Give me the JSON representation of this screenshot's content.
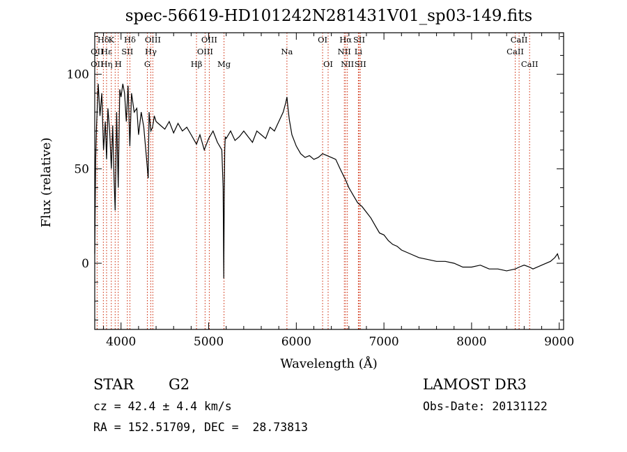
{
  "chart_data": {
    "type": "line",
    "title": "spec-56619-HD101242N281431V01_sp03-149.fits",
    "xlabel": "Wavelength (Å)",
    "ylabel": "Flux (relative)",
    "xlim": [
      3700,
      9050
    ],
    "ylim": [
      -35,
      122
    ],
    "xticks": [
      4000,
      5000,
      6000,
      7000,
      8000,
      9000
    ],
    "yticks": [
      0,
      50,
      100
    ],
    "series": [
      {
        "name": "flux",
        "x": [
          3700,
          3710,
          3720,
          3740,
          3760,
          3780,
          3800,
          3820,
          3835,
          3850,
          3870,
          3889,
          3905,
          3920,
          3933,
          3950,
          3968,
          3985,
          4000,
          4020,
          4040,
          4060,
          4080,
          4101,
          4120,
          4150,
          4180,
          4200,
          4230,
          4260,
          4290,
          4310,
          4320,
          4340,
          4360,
          4380,
          4400,
          4450,
          4500,
          4550,
          4600,
          4650,
          4700,
          4750,
          4800,
          4861,
          4900,
          4950,
          5000,
          5050,
          5100,
          5150,
          5165,
          5172,
          5178,
          5183,
          5190,
          5200,
          5250,
          5300,
          5350,
          5400,
          5450,
          5500,
          5550,
          5600,
          5650,
          5700,
          5750,
          5800,
          5850,
          5880,
          5893,
          5905,
          5920,
          5950,
          6000,
          6050,
          6100,
          6150,
          6200,
          6250,
          6300,
          6350,
          6400,
          6450,
          6500,
          6563,
          6600,
          6650,
          6700,
          6750,
          6800,
          6850,
          6900,
          6950,
          7000,
          7050,
          7100,
          7150,
          7200,
          7300,
          7400,
          7500,
          7600,
          7700,
          7800,
          7900,
          8000,
          8100,
          8200,
          8300,
          8400,
          8500,
          8542,
          8600,
          8662,
          8700,
          8800,
          8900,
          8950,
          8980,
          9000
        ],
        "values": [
          5,
          55,
          72,
          95,
          78,
          90,
          60,
          75,
          55,
          82,
          70,
          50,
          73,
          45,
          28,
          80,
          40,
          92,
          88,
          95,
          90,
          75,
          94,
          62,
          90,
          80,
          82,
          68,
          80,
          72,
          56,
          45,
          80,
          70,
          72,
          78,
          75,
          73,
          71,
          75,
          69,
          74,
          70,
          72,
          68,
          63,
          68,
          60,
          66,
          70,
          64,
          60,
          40,
          -8,
          35,
          60,
          67,
          66,
          70,
          65,
          67,
          70,
          67,
          64,
          70,
          68,
          66,
          72,
          70,
          75,
          80,
          85,
          88,
          82,
          76,
          68,
          62,
          58,
          56,
          57,
          55,
          56,
          58,
          57,
          56,
          55,
          50,
          44,
          40,
          36,
          32,
          30,
          27,
          24,
          20,
          16,
          15,
          12,
          10,
          9,
          7,
          5,
          3,
          2,
          1,
          1,
          0,
          -2,
          -2,
          -1,
          -3,
          -3,
          -4,
          -3,
          -2,
          -1,
          -2,
          -3,
          -1,
          1,
          3,
          5,
          2
        ]
      }
    ],
    "line_labels": [
      {
        "label": "Hδ",
        "wavelength": 3798,
        "row": 0
      },
      {
        "label": "K",
        "wavelength": 3889,
        "row": 0
      },
      {
        "label": "Hδ",
        "wavelength": 4101,
        "row": 0
      },
      {
        "label": "OIII",
        "wavelength": 4363,
        "row": 0
      },
      {
        "label": "OIII",
        "wavelength": 5007,
        "row": 0
      },
      {
        "label": "OI",
        "wavelength": 6300,
        "row": 0
      },
      {
        "label": "Hα",
        "wavelength": 6563,
        "row": 0
      },
      {
        "label": "SII",
        "wavelength": 6717,
        "row": 0
      },
      {
        "label": "CaII",
        "wavelength": 8542,
        "row": 0
      },
      {
        "label": "OII",
        "wavelength": 3727,
        "row": 1
      },
      {
        "label": "Hε",
        "wavelength": 3835,
        "row": 1
      },
      {
        "label": "SII",
        "wavelength": 4072,
        "row": 1
      },
      {
        "label": "Hγ",
        "wavelength": 4340,
        "row": 1
      },
      {
        "label": "OIII",
        "wavelength": 4959,
        "row": 1
      },
      {
        "label": "NII",
        "wavelength": 6548,
        "row": 1
      },
      {
        "label": "Li",
        "wavelength": 6708,
        "row": 1
      },
      {
        "label": "CaII",
        "wavelength": 8498,
        "row": 1
      },
      {
        "label": "OII",
        "wavelength": 3727,
        "row": 2
      },
      {
        "label": "Hη",
        "wavelength": 3835,
        "row": 2
      },
      {
        "label": "H",
        "wavelength": 3968,
        "row": 2
      },
      {
        "label": "G",
        "wavelength": 4300,
        "row": 2
      },
      {
        "label": "Hβ",
        "wavelength": 4861,
        "row": 2
      },
      {
        "label": "Mg",
        "wavelength": 5175,
        "row": 2
      },
      {
        "label": "Na",
        "wavelength": 5893,
        "row": 1
      },
      {
        "label": "OI",
        "wavelength": 6363,
        "row": 2
      },
      {
        "label": "NII",
        "wavelength": 6583,
        "row": 2
      },
      {
        "label": "SII",
        "wavelength": 6731,
        "row": 2
      },
      {
        "label": "CaII",
        "wavelength": 8662,
        "row": 2
      }
    ],
    "marker_lines": [
      3727,
      3798,
      3835,
      3889,
      3933,
      3968,
      4072,
      4101,
      4300,
      4340,
      4363,
      4861,
      4959,
      5007,
      5175,
      5893,
      6300,
      6363,
      6548,
      6563,
      6583,
      6708,
      6717,
      6731,
      8498,
      8542,
      8662
    ],
    "marker_color": "#cc2200",
    "line_color": "#000000"
  },
  "info": {
    "class": "STAR",
    "subclass": "G2",
    "survey": "LAMOST DR3",
    "cz": "cz = 42.4 ± 4.4 km/s",
    "obs_date": "Obs-Date: 20131122",
    "radec": "RA = 152.51709, DEC =  28.73813"
  }
}
